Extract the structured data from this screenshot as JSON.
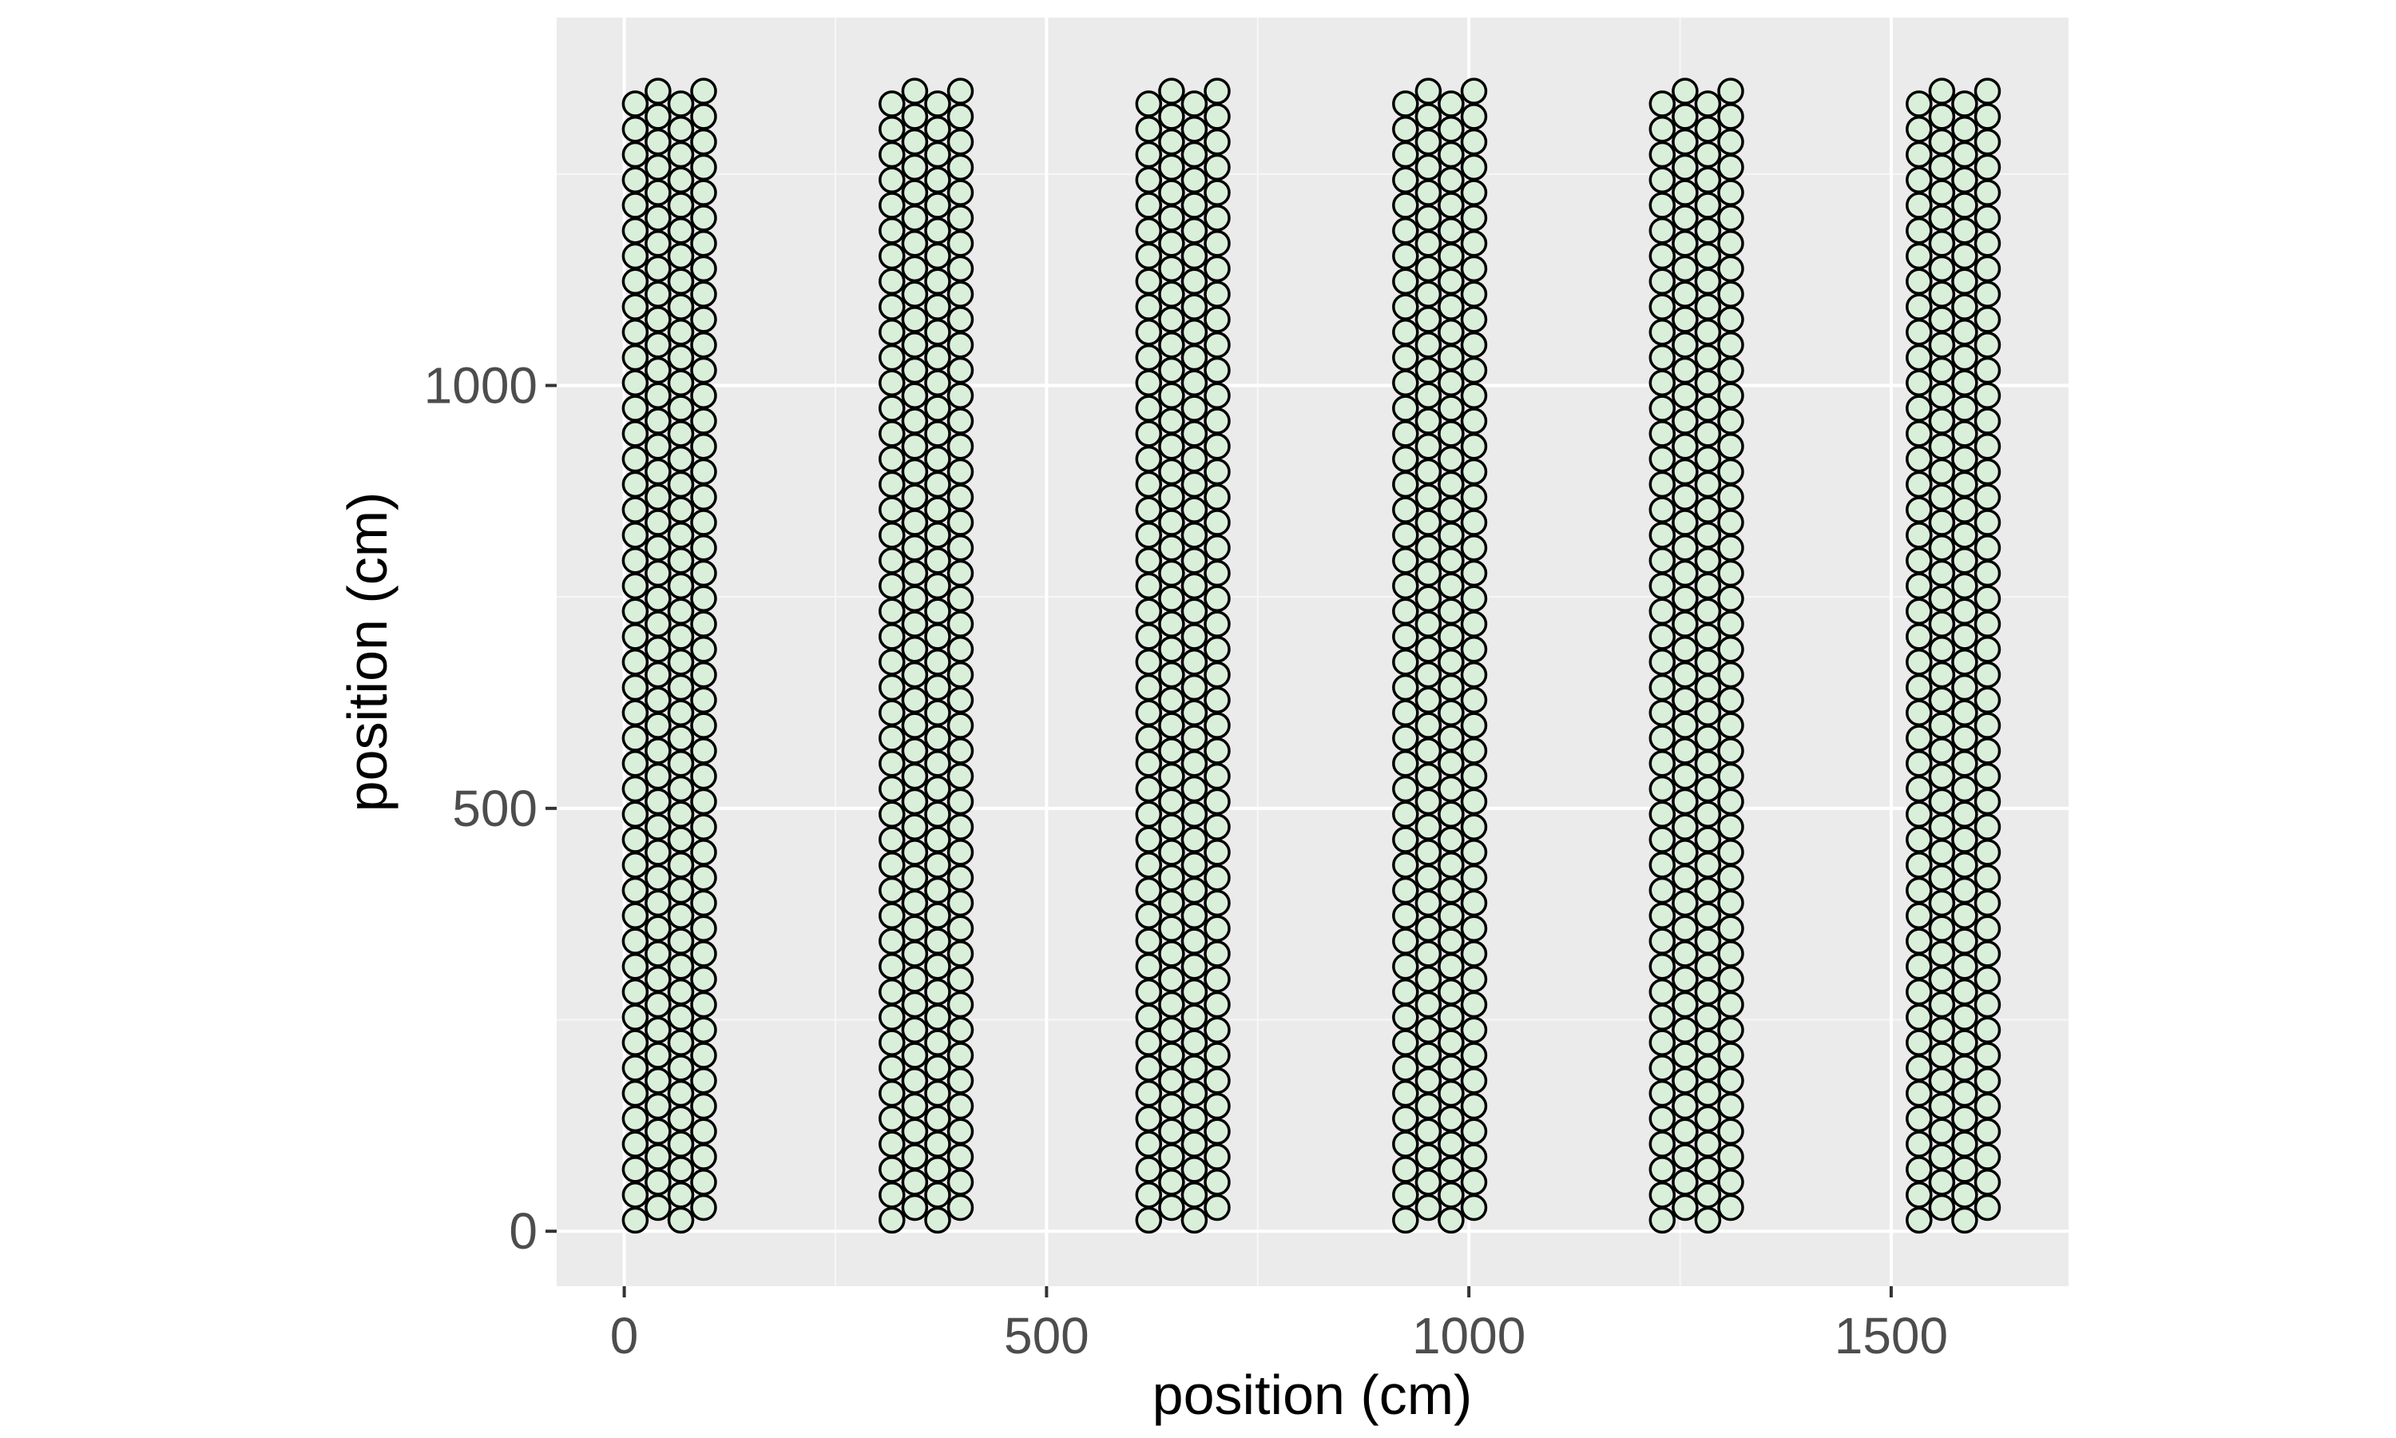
{
  "chart_data": {
    "type": "scatter",
    "title": "",
    "xlabel": "position (cm)",
    "ylabel": "position (cm)",
    "xlim": [
      -80,
      1710
    ],
    "ylim": [
      -65,
      1435
    ],
    "x_ticks": [
      0,
      500,
      1000,
      1500
    ],
    "x_tick_labels": [
      "0",
      "500",
      "1000",
      "1500"
    ],
    "y_ticks": [
      0,
      500,
      1000
    ],
    "y_tick_labels": [
      "0",
      "500",
      "1000"
    ],
    "grid": true,
    "legend": "none",
    "colors": {
      "panel_background": "#ebebeb",
      "grid_major": "#ffffff",
      "grid_minor": "#f7f7f7",
      "point_fill": "#d9efd9",
      "point_stroke": "#000000",
      "tick_label": "#4d4d4d",
      "axis_title": "#000000"
    },
    "point_layout": {
      "description": "six vertical strips, each with four staggered columns of points",
      "strip_count": 6,
      "strip_pitch_x": 304,
      "first_strip_x": 13,
      "column_offsets_x": [
        0,
        27,
        54,
        81
      ],
      "column_y_start": [
        13,
        28,
        13,
        28
      ],
      "row_pitch_y": 30,
      "rows_per_column": 45
    }
  }
}
